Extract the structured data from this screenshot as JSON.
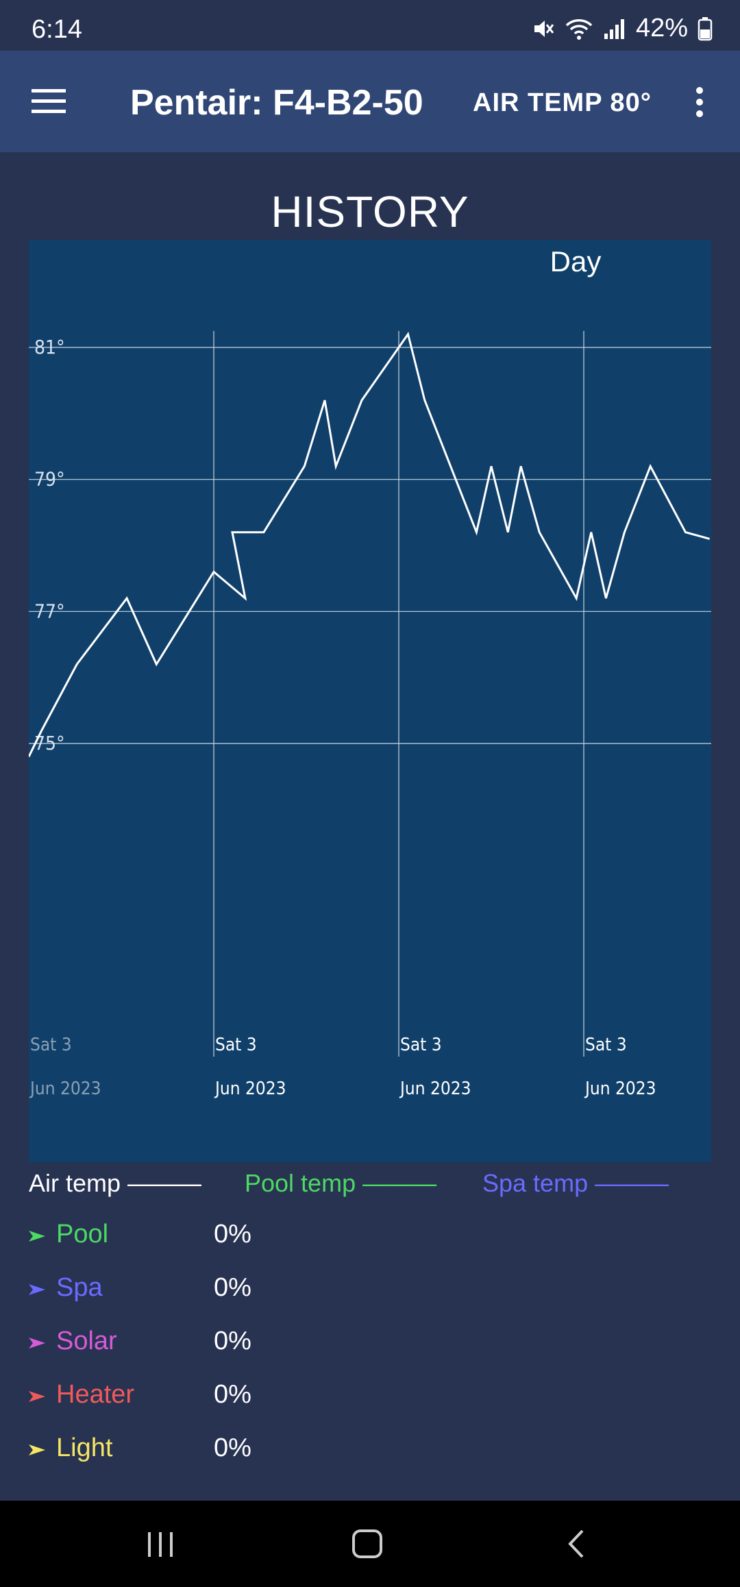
{
  "status_bar": {
    "time": "6:14",
    "battery": "42%",
    "icons": [
      "mute-icon",
      "wifi-icon",
      "signal-icon",
      "battery-icon"
    ]
  },
  "app_bar": {
    "title": "Pentair: F4-B2-50",
    "air_temp": "AIR TEMP 80°",
    "menu_icon": "hamburger-menu-icon",
    "more_icon": "more-vert-icon"
  },
  "history": {
    "title": "HISTORY",
    "period": "Day"
  },
  "chart_data": {
    "type": "line",
    "title": "",
    "xlabel": "",
    "ylabel": "",
    "ylim": [
      71.2,
      82.3
    ],
    "y_ticks": [
      "75°",
      "77°",
      "79°",
      "81°"
    ],
    "y_tick_values": [
      75,
      77,
      79,
      81
    ],
    "x_tick_dates": [
      "Sat 3",
      "Sat 3",
      "Sat 3",
      "Sat 3"
    ],
    "x_tick_years": [
      "Jun 2023",
      "Jun 2023",
      "Jun 2023",
      "Jun 2023"
    ],
    "x_ticks": [
      0,
      1,
      2,
      3
    ],
    "x_range": [
      -0.0,
      3.68
    ],
    "grid": true,
    "series": [
      {
        "color": "#ffffff",
        "x": [
          0.0,
          0.07,
          0.26,
          0.53,
          0.69,
          1.0,
          1.17,
          1.1,
          1.27,
          1.49,
          1.6,
          1.66,
          1.8,
          2.05,
          2.14,
          2.28,
          2.42,
          2.5,
          2.59,
          2.66,
          2.76,
          2.96,
          3.04,
          3.12,
          3.22,
          3.36,
          3.55,
          3.68
        ],
        "y": [
          74.8,
          75.2,
          76.2,
          77.2,
          76.2,
          77.6,
          77.2,
          78.2,
          78.2,
          79.2,
          80.2,
          79.2,
          80.2,
          81.2,
          80.2,
          79.2,
          78.2,
          79.2,
          78.2,
          79.2,
          78.2,
          77.2,
          78.2,
          77.2,
          78.2,
          79.2,
          78.2,
          78.1
        ]
      }
    ]
  },
  "legend": [
    {
      "label": "Air temp ———",
      "color": "#ffffff"
    },
    {
      "label": "Pool temp ———",
      "color": "#4cd964"
    },
    {
      "label": "Spa temp ———",
      "color": "#6b6bff"
    }
  ],
  "statuses": [
    {
      "label": "Pool",
      "value": "0%",
      "color": "#4cd964"
    },
    {
      "label": "Spa",
      "value": "0%",
      "color": "#6b6bff"
    },
    {
      "label": "Solar",
      "value": "0%",
      "color": "#d65bd6"
    },
    {
      "label": "Heater",
      "value": "0%",
      "color": "#f05a5a"
    },
    {
      "label": "Light",
      "value": "0%",
      "color": "#f5e663"
    }
  ],
  "nav_bar": {
    "buttons": [
      "recents-icon",
      "home-icon",
      "back-icon"
    ]
  }
}
